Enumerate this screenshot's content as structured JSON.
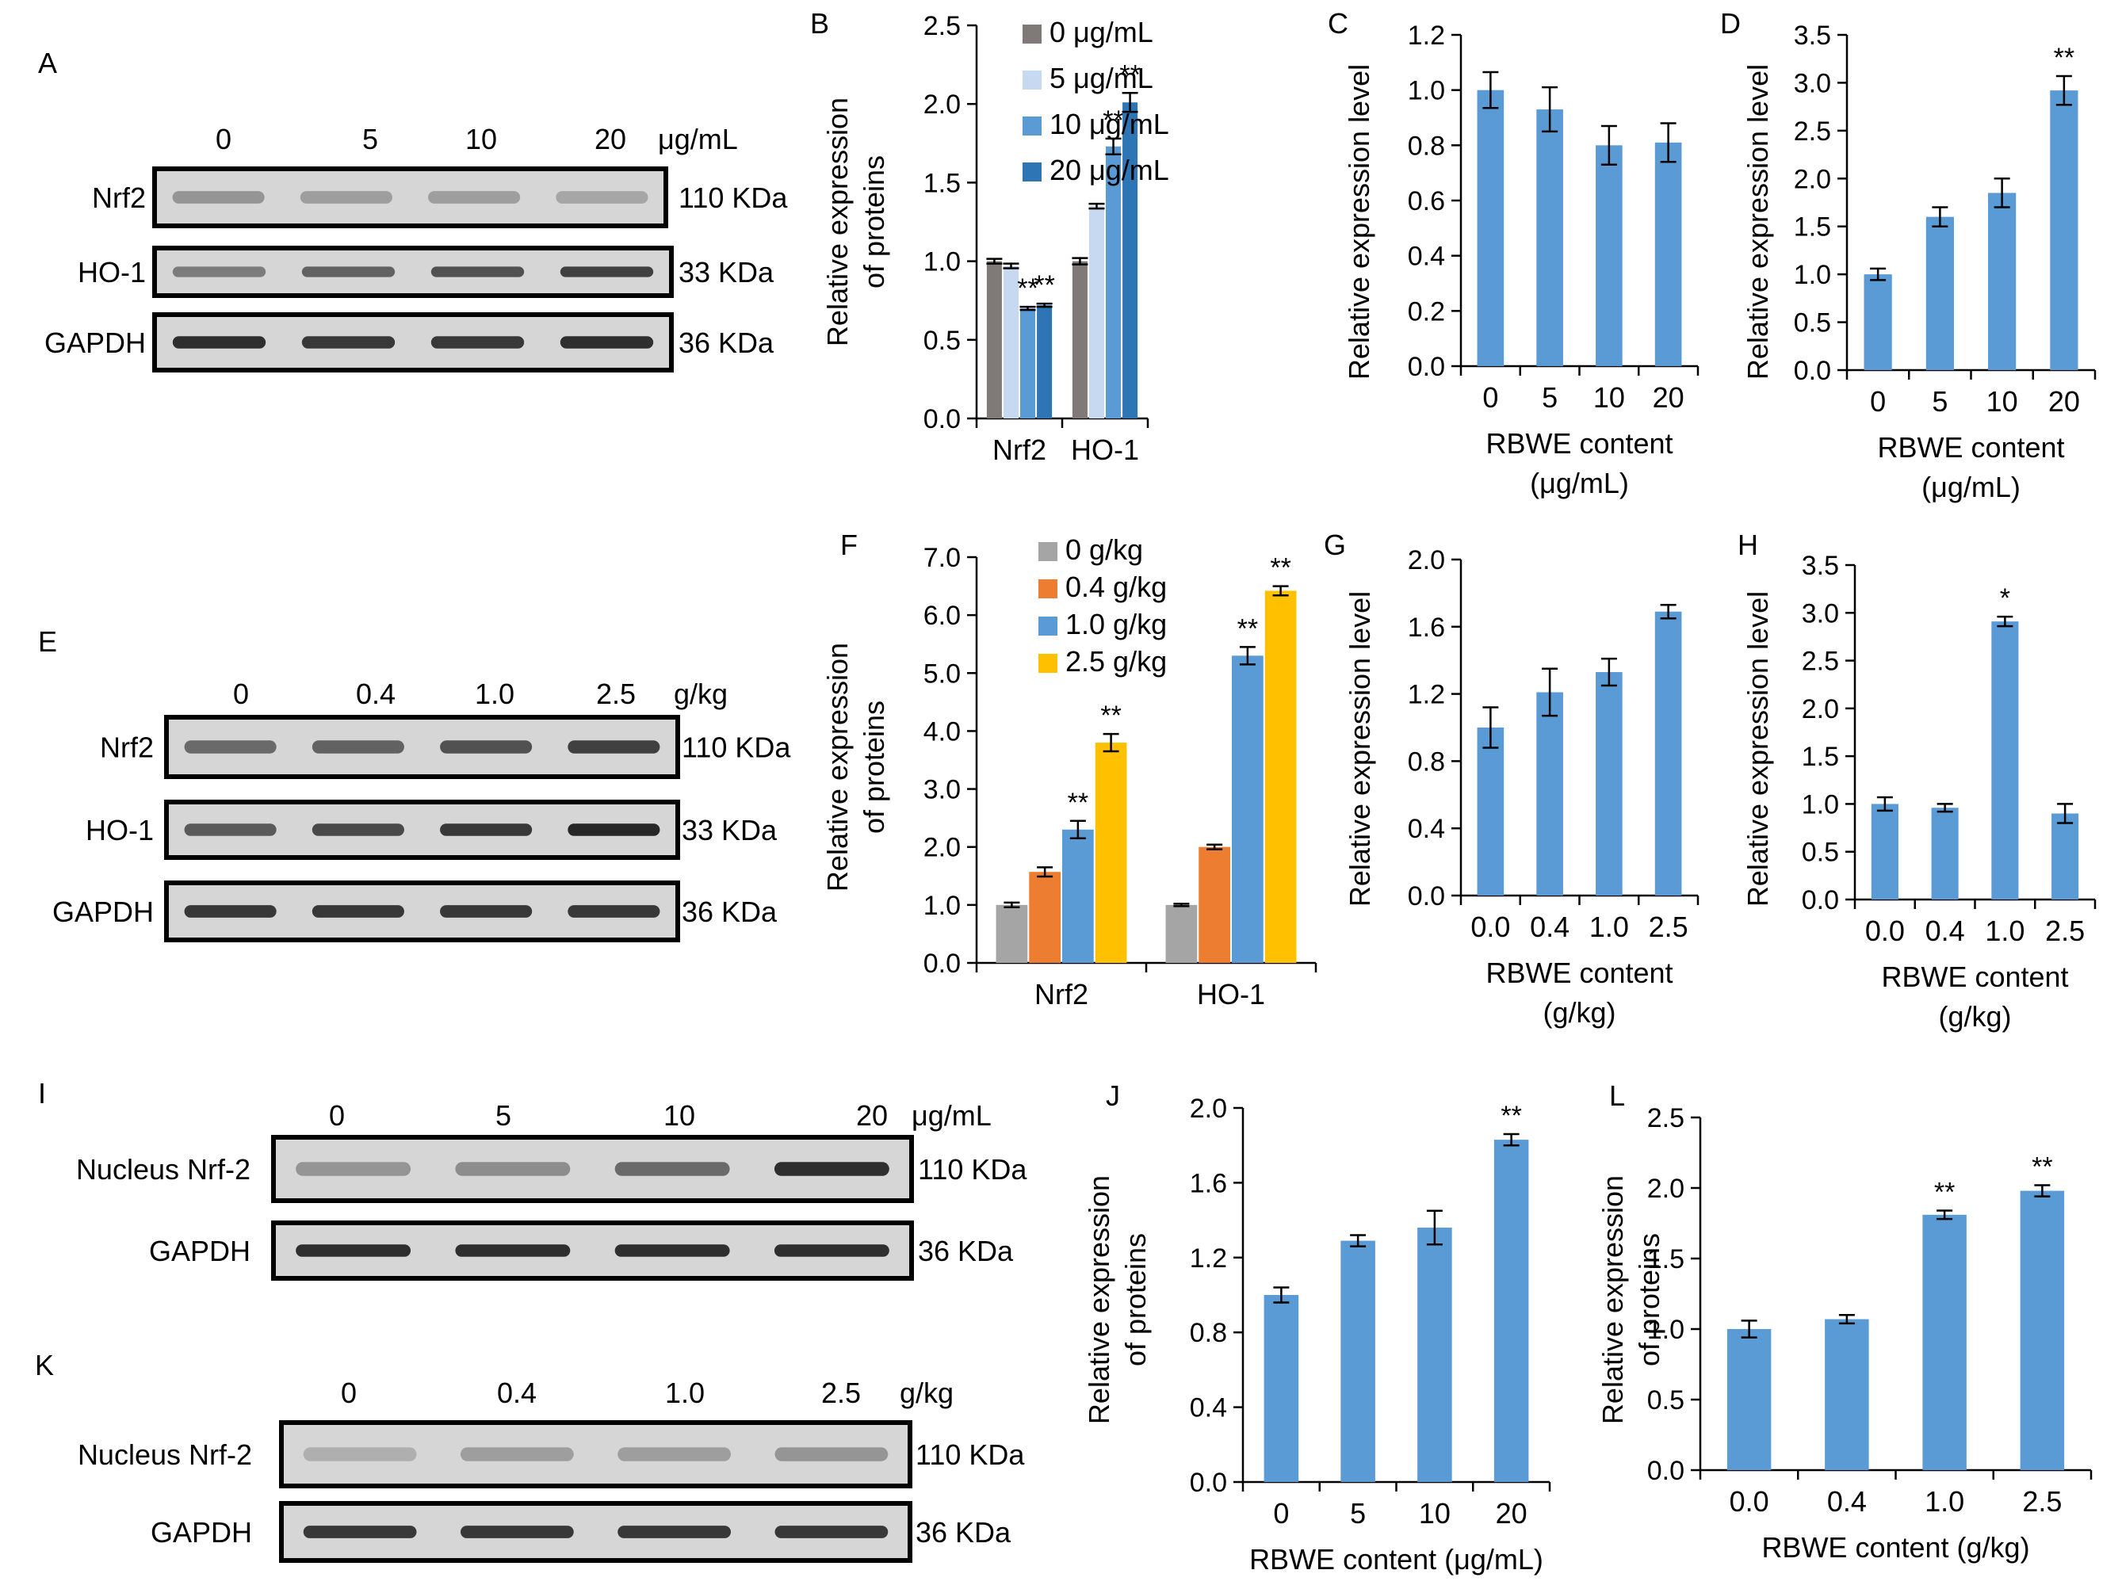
{
  "panels": {
    "A": {
      "letter": "A",
      "lane_labels": [
        "0",
        "5",
        "10",
        "20"
      ],
      "unit": "μg/mL",
      "blots": [
        {
          "label": "Nrf2",
          "kda": "110 KDa",
          "intensity": [
            0.3,
            0.25,
            0.25,
            0.2
          ]
        },
        {
          "label": "HO-1",
          "kda": "33 KDa",
          "intensity": [
            0.45,
            0.6,
            0.7,
            0.8
          ]
        },
        {
          "label": "GAPDH",
          "kda": "36 KDa",
          "intensity": [
            0.9,
            0.85,
            0.85,
            0.9
          ]
        }
      ]
    },
    "E": {
      "letter": "E",
      "lane_labels": [
        "0",
        "0.4",
        "1.0",
        "2.5"
      ],
      "unit": "g/kg",
      "blots": [
        {
          "label": "Nrf2",
          "kda": "110 KDa",
          "intensity": [
            0.55,
            0.6,
            0.7,
            0.8
          ]
        },
        {
          "label": "HO-1",
          "kda": "33 KDa",
          "intensity": [
            0.65,
            0.75,
            0.85,
            0.95
          ]
        },
        {
          "label": "GAPDH",
          "kda": "36 KDa",
          "intensity": [
            0.85,
            0.85,
            0.85,
            0.85
          ]
        }
      ]
    },
    "I": {
      "letter": "I",
      "lane_labels": [
        "0",
        "5",
        "10",
        "20"
      ],
      "unit": "μg/mL",
      "blots": [
        {
          "label": "Nucleus Nrf-2",
          "kda": "110 KDa",
          "intensity": [
            0.3,
            0.35,
            0.55,
            0.9
          ]
        },
        {
          "label": "GAPDH",
          "kda": "36 KDa",
          "intensity": [
            0.9,
            0.9,
            0.9,
            0.9
          ]
        }
      ]
    },
    "K": {
      "letter": "K",
      "lane_labels": [
        "0",
        "0.4",
        "1.0",
        "2.5"
      ],
      "unit": "g/kg",
      "blots": [
        {
          "label": "Nucleus Nrf-2",
          "kda": "110 KDa",
          "intensity": [
            0.15,
            0.25,
            0.25,
            0.3
          ]
        },
        {
          "label": "GAPDH",
          "kda": "36 KDa",
          "intensity": [
            0.85,
            0.85,
            0.85,
            0.85
          ]
        }
      ]
    }
  },
  "chart_data": [
    {
      "id": "B",
      "letter": "B",
      "type": "bar",
      "ylabel": [
        "Relative expression",
        "of proteins"
      ],
      "xlabel": [],
      "categories": [
        "Nrf2",
        "HO-1"
      ],
      "ylim": [
        0,
        2.5
      ],
      "yticks": [
        "0.0",
        "0.5",
        "1.0",
        "1.5",
        "2.0",
        "2.5"
      ],
      "series": [
        {
          "name": "0 μg/mL",
          "color": "#7f7a78",
          "values": [
            1.0,
            1.0
          ],
          "errors": [
            0.015,
            0.02
          ],
          "marks": [
            "",
            ""
          ]
        },
        {
          "name": "5 μg/mL",
          "color": "#c6d9f0",
          "values": [
            0.97,
            1.35
          ],
          "errors": [
            0.015,
            0.015
          ],
          "marks": [
            "",
            ""
          ]
        },
        {
          "name": "10 μg/mL",
          "color": "#5b9bd5",
          "values": [
            0.7,
            1.73
          ],
          "errors": [
            0.01,
            0.05
          ],
          "marks": [
            "**",
            "**"
          ]
        },
        {
          "name": "20 μg/mL",
          "color": "#2e75b6",
          "values": [
            0.72,
            2.01
          ],
          "errors": [
            0.01,
            0.06
          ],
          "marks": [
            "**",
            "**"
          ]
        }
      ]
    },
    {
      "id": "C",
      "letter": "C",
      "type": "bar",
      "ylabel": [
        "Relative expression level"
      ],
      "xlabel": [
        "RBWE content",
        "(μg/mL)"
      ],
      "categories": [
        "0",
        "5",
        "10",
        "20"
      ],
      "ylim": [
        0,
        1.2
      ],
      "yticks": [
        "0.0",
        "0.2",
        "0.4",
        "0.6",
        "0.8",
        "1.0",
        "1.2"
      ],
      "series": [
        {
          "color": "#5b9bd5",
          "values": [
            1.0,
            0.93,
            0.8,
            0.81
          ],
          "errors": [
            0.065,
            0.08,
            0.07,
            0.07
          ],
          "marks": [
            "",
            "",
            "",
            ""
          ]
        }
      ]
    },
    {
      "id": "D",
      "letter": "D",
      "type": "bar",
      "ylabel": [
        "Relative expression level"
      ],
      "xlabel": [
        "RBWE content",
        "(μg/mL)"
      ],
      "categories": [
        "0",
        "5",
        "10",
        "20"
      ],
      "ylim": [
        0,
        3.5
      ],
      "yticks": [
        "0.0",
        "0.5",
        "1.0",
        "1.5",
        "2.0",
        "2.5",
        "3.0",
        "3.5"
      ],
      "series": [
        {
          "color": "#5b9bd5",
          "values": [
            1.0,
            1.6,
            1.85,
            2.92
          ],
          "errors": [
            0.06,
            0.1,
            0.15,
            0.15
          ],
          "marks": [
            "",
            "",
            "",
            "**"
          ]
        }
      ]
    },
    {
      "id": "F",
      "letter": "F",
      "type": "bar",
      "ylabel": [
        "Relative expression",
        "of proteins"
      ],
      "xlabel": [],
      "categories": [
        "Nrf2",
        "HO-1"
      ],
      "ylim": [
        0,
        7
      ],
      "yticks": [
        "0.0",
        "1.0",
        "2.0",
        "3.0",
        "4.0",
        "5.0",
        "6.0",
        "7.0"
      ],
      "series": [
        {
          "name": "0 g/kg",
          "color": "#a5a5a5",
          "values": [
            1.0,
            1.0
          ],
          "errors": [
            0.04,
            0.02
          ],
          "marks": [
            "",
            ""
          ]
        },
        {
          "name": "0.4 g/kg",
          "color": "#ed7d31",
          "values": [
            1.57,
            2.0
          ],
          "errors": [
            0.08,
            0.04
          ],
          "marks": [
            "",
            ""
          ]
        },
        {
          "name": "1.0 g/kg",
          "color": "#5b9bd5",
          "values": [
            2.3,
            5.3
          ],
          "errors": [
            0.15,
            0.15
          ],
          "marks": [
            "**",
            "**"
          ]
        },
        {
          "name": "2.5 g/kg",
          "color": "#ffc000",
          "values": [
            3.8,
            6.42
          ],
          "errors": [
            0.15,
            0.08
          ],
          "marks": [
            "**",
            "**"
          ]
        }
      ]
    },
    {
      "id": "G",
      "letter": "G",
      "type": "bar",
      "ylabel": [
        "Relative expression level"
      ],
      "xlabel": [
        "RBWE content",
        "(g/kg)"
      ],
      "categories": [
        "0.0",
        "0.4",
        "1.0",
        "2.5"
      ],
      "ylim": [
        0,
        2.0
      ],
      "yticks": [
        "0.0",
        "0.4",
        "0.8",
        "1.2",
        "1.6",
        "2.0"
      ],
      "series": [
        {
          "color": "#5b9bd5",
          "values": [
            1.0,
            1.21,
            1.33,
            1.69
          ],
          "errors": [
            0.12,
            0.14,
            0.08,
            0.04
          ],
          "marks": [
            "",
            "",
            "",
            ""
          ]
        }
      ]
    },
    {
      "id": "H",
      "letter": "H",
      "type": "bar",
      "ylabel": [
        "Relative expression level"
      ],
      "xlabel": [
        "RBWE content",
        "(g/kg)"
      ],
      "categories": [
        "0.0",
        "0.4",
        "1.0",
        "2.5"
      ],
      "ylim": [
        0,
        3.5
      ],
      "yticks": [
        "0.0",
        "0.5",
        "1.0",
        "1.5",
        "2.0",
        "2.5",
        "3.0",
        "3.5"
      ],
      "series": [
        {
          "color": "#5b9bd5",
          "values": [
            1.0,
            0.96,
            2.91,
            0.9
          ],
          "errors": [
            0.07,
            0.04,
            0.05,
            0.1
          ],
          "marks": [
            "",
            "",
            "*",
            ""
          ]
        }
      ]
    },
    {
      "id": "J",
      "letter": "J",
      "type": "bar",
      "ylabel": [
        "Relative expression",
        "of proteins"
      ],
      "xlabel": [
        "RBWE content (μg/mL)"
      ],
      "categories": [
        "0",
        "5",
        "10",
        "20"
      ],
      "ylim": [
        0,
        2.0
      ],
      "yticks": [
        "0.0",
        "0.4",
        "0.8",
        "1.2",
        "1.6",
        "2.0"
      ],
      "series": [
        {
          "color": "#5b9bd5",
          "values": [
            1.0,
            1.29,
            1.36,
            1.83
          ],
          "errors": [
            0.04,
            0.03,
            0.09,
            0.03
          ],
          "marks": [
            "",
            "",
            "",
            "**"
          ]
        }
      ]
    },
    {
      "id": "L",
      "letter": "L",
      "type": "bar",
      "ylabel": [
        "Relative expression",
        "of proteins"
      ],
      "xlabel": [
        "RBWE content (g/kg)"
      ],
      "categories": [
        "0.0",
        "0.4",
        "1.0",
        "2.5"
      ],
      "ylim": [
        0,
        2.5
      ],
      "yticks": [
        "0.0",
        "0.5",
        "1.0",
        "1.5",
        "2.0",
        "2.5"
      ],
      "series": [
        {
          "color": "#5b9bd5",
          "values": [
            1.0,
            1.07,
            1.81,
            1.98
          ],
          "errors": [
            0.06,
            0.03,
            0.03,
            0.04
          ],
          "marks": [
            "",
            "",
            "**",
            "**"
          ]
        }
      ]
    }
  ]
}
